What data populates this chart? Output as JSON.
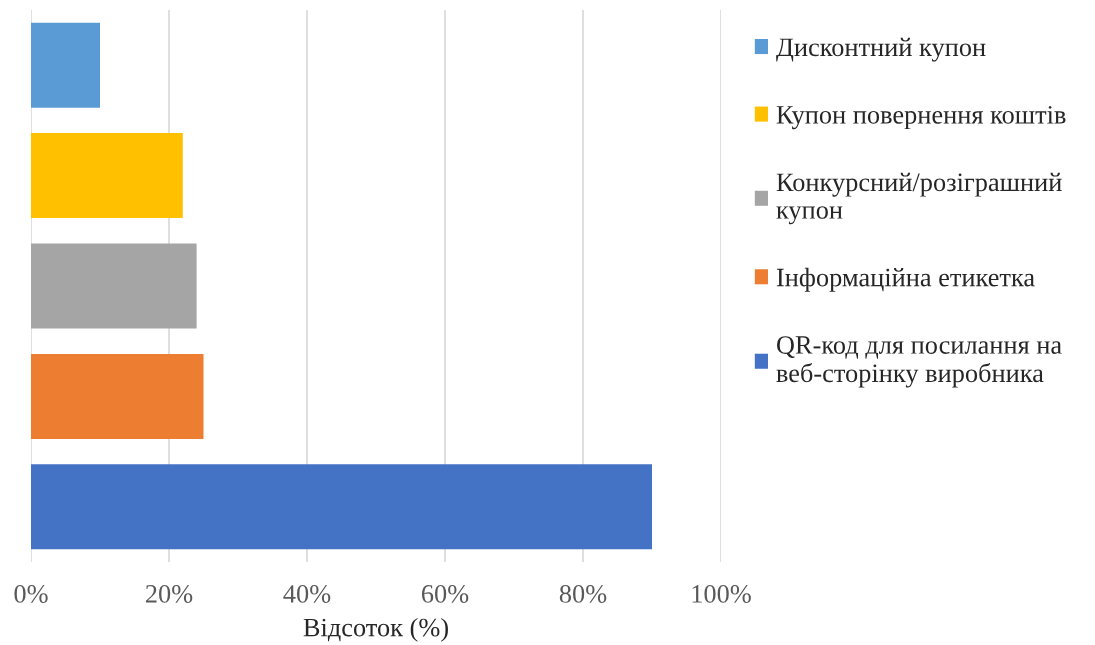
{
  "chart_data": {
    "type": "bar",
    "orientation": "horizontal",
    "stacked": true,
    "categories": [
      null,
      null,
      null,
      null,
      null
    ],
    "series": [
      {
        "name": "Дисконтний купон",
        "color": "#5b9bd5",
        "values": [
          10,
          null,
          null,
          null,
          null
        ]
      },
      {
        "name": "Купон повернення коштів",
        "color": "#ffc000",
        "values": [
          null,
          22,
          null,
          null,
          null
        ]
      },
      {
        "name": "Конкурсний/розіграшний\nкупон",
        "color": "#a5a5a5",
        "values": [
          null,
          null,
          24,
          null,
          null
        ]
      },
      {
        "name": "Інформаційна етикетка",
        "color": "#ed7d31",
        "values": [
          null,
          null,
          null,
          25,
          null
        ]
      },
      {
        "name": "QR-код для посилання на\nвеб-сторінку виробника",
        "color": "#4472c4",
        "values": [
          null,
          null,
          null,
          null,
          90
        ]
      }
    ],
    "xlim": [
      0,
      100
    ],
    "xticks": [
      {
        "value": 0,
        "label": "0%"
      },
      {
        "value": 20,
        "label": "20%"
      },
      {
        "value": 40,
        "label": "40%"
      },
      {
        "value": 60,
        "label": "60%"
      },
      {
        "value": 80,
        "label": "80%"
      },
      {
        "value": 100,
        "label": "100%"
      }
    ],
    "xlabel": "Відсоток (%)",
    "grid": "x",
    "legend": "right",
    "tick_labels": "x"
  }
}
